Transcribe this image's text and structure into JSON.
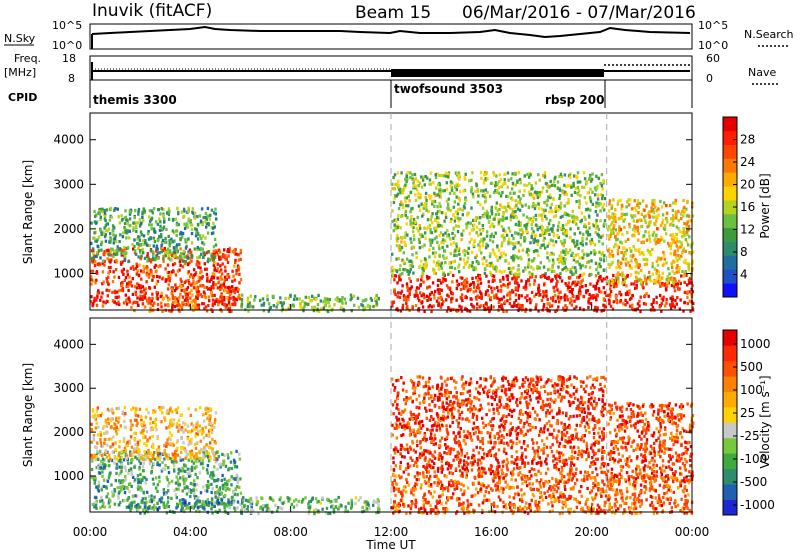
{
  "title": {
    "station": "Inuvik (fitACF)",
    "beam": "Beam 15",
    "dates": "06/Mar/2016 - 07/Mar/2016"
  },
  "top_panels": {
    "nsky_label": "N.Sky",
    "nsky_ticks": [
      "10^5",
      "10^0"
    ],
    "nsearch_label": "N.Search",
    "nsearch_ticks": [
      "10^5",
      "10^0"
    ],
    "freq_label": "Freq.",
    "freq_unit": "[MHz]",
    "freq_ticks": [
      "18",
      "8"
    ],
    "nave_label": "Nave",
    "nave_ticks": [
      "60",
      "0"
    ],
    "cpid_label": "CPID",
    "cpid_modes": [
      {
        "name": "themis 3300",
        "start_h": 0
      },
      {
        "name": "twofsound 3503",
        "start_h": 12
      },
      {
        "name": "rbsp 200",
        "start_h": 20.6
      }
    ]
  },
  "chart_data": [
    {
      "type": "heatmap",
      "name": "power",
      "ylabel": "Slant Range [km]",
      "xlabel": "",
      "xlim_hours": [
        0,
        24
      ],
      "ylim_km": [
        180,
        4600
      ],
      "yticks": [
        "1000",
        "2000",
        "3000",
        "4000"
      ],
      "colorbar": {
        "label": "Power [dB]",
        "ticks": [
          "4",
          "8",
          "12",
          "16",
          "20",
          "24",
          "28"
        ],
        "colors": [
          "#1010ff",
          "#1e50c8",
          "#1e6ea0",
          "#2e8c6e",
          "#3c9c3c",
          "#6cc040",
          "#b4d21e",
          "#ffd200",
          "#ffaa00",
          "#ff7800",
          "#ff4600",
          "#ff1e00",
          "#e60000"
        ]
      },
      "regions": [
        {
          "t0": 0.0,
          "t1": 6.0,
          "r0": 300,
          "r1": 1600,
          "level": 0.85
        },
        {
          "t0": 0.0,
          "t1": 5.0,
          "r0": 1300,
          "r1": 2500,
          "level": 0.35
        },
        {
          "t0": 1.5,
          "t1": 6.0,
          "r0": 180,
          "r1": 500,
          "level": 0.8
        },
        {
          "t0": 12.0,
          "t1": 24.0,
          "r0": 180,
          "r1": 1000,
          "level": 0.9
        },
        {
          "t0": 12.0,
          "t1": 20.5,
          "r0": 1000,
          "r1": 3300,
          "level": 0.45
        },
        {
          "t0": 20.6,
          "t1": 24.0,
          "r0": 800,
          "r1": 2700,
          "level": 0.6
        },
        {
          "t0": 6.0,
          "t1": 11.5,
          "r0": 180,
          "r1": 550,
          "level": 0.4
        }
      ]
    },
    {
      "type": "heatmap",
      "name": "velocity",
      "ylabel": "Slant Range [km]",
      "xlabel": "Time UT",
      "xticks": [
        "00:00",
        "04:00",
        "08:00",
        "12:00",
        "16:00",
        "20:00",
        "00:00"
      ],
      "xlim_hours": [
        0,
        24
      ],
      "ylim_km": [
        180,
        4600
      ],
      "yticks": [
        "1000",
        "2000",
        "3000",
        "4000"
      ],
      "colorbar": {
        "label": "Velocity [m s⁻¹]",
        "ticks": [
          "1000",
          "500",
          "100",
          "25",
          "-25",
          "-100",
          "-500",
          "-1000"
        ],
        "colors": [
          "#1e28d2",
          "#2060b0",
          "#2e8c6e",
          "#3caa3c",
          "#78c83c",
          "#c8c8c8",
          "#ffd200",
          "#ffaa00",
          "#ff8000",
          "#ff5000",
          "#ff2800",
          "#e60000"
        ]
      },
      "regions": [
        {
          "t0": 0.0,
          "t1": 6.0,
          "r0": 300,
          "r1": 1600,
          "level": 0.3
        },
        {
          "t0": 0.0,
          "t1": 5.0,
          "r0": 1400,
          "r1": 2600,
          "level": 0.6
        },
        {
          "t0": 1.5,
          "t1": 6.5,
          "r0": 180,
          "r1": 500,
          "level": 0.25
        },
        {
          "t0": 12.0,
          "t1": 24.0,
          "r0": 180,
          "r1": 1100,
          "level": 0.78
        },
        {
          "t0": 12.0,
          "t1": 20.5,
          "r0": 1100,
          "r1": 3300,
          "level": 0.85
        },
        {
          "t0": 20.6,
          "t1": 24.0,
          "r0": 900,
          "r1": 2700,
          "level": 0.82
        },
        {
          "t0": 6.0,
          "t1": 11.5,
          "r0": 180,
          "r1": 550,
          "level": 0.35
        }
      ]
    }
  ]
}
